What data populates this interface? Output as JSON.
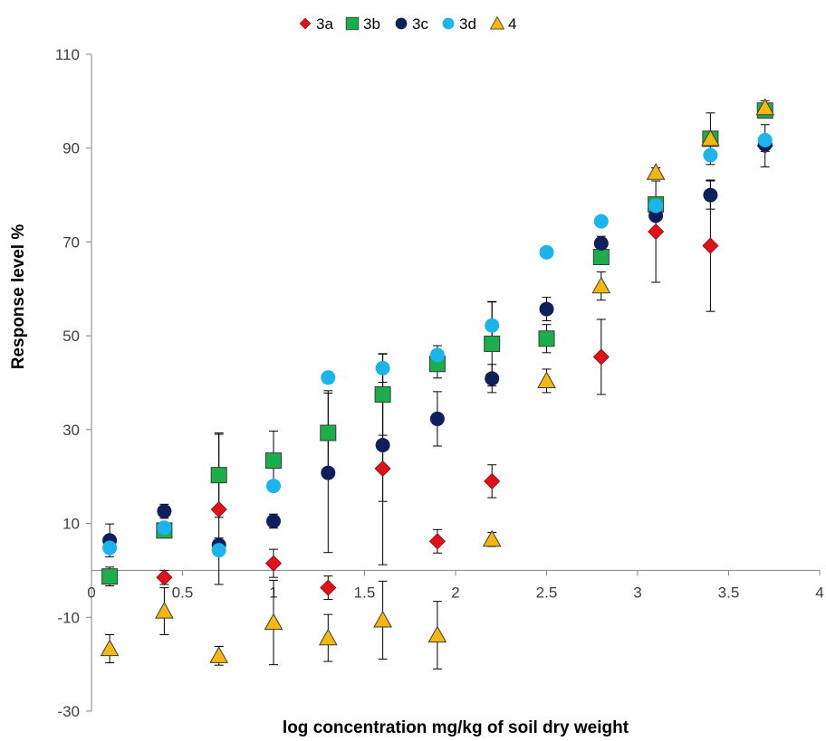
{
  "chart_data": {
    "type": "scatter",
    "title": "",
    "xlabel": "log concentration mg/kg of soil dry weight",
    "ylabel": "Response level %",
    "xlim": [
      0,
      4
    ],
    "ylim": [
      -30,
      110
    ],
    "x_ticks": [
      0,
      0.5,
      1,
      1.5,
      2,
      2.5,
      3,
      3.5,
      4
    ],
    "x_tick_labels": [
      "0",
      "0.5",
      "1",
      "1.5",
      "2",
      "2.5",
      "3",
      "3.5",
      "4"
    ],
    "y_ticks": [
      -30,
      -10,
      10,
      30,
      50,
      70,
      90,
      110
    ],
    "y_tick_labels": [
      "-30",
      "-10",
      "10",
      "30",
      "50",
      "70",
      "90",
      "110"
    ],
    "grid": false,
    "legend_position": "top-center",
    "error_bars": true,
    "series": [
      {
        "name": "3a",
        "marker": "diamond",
        "color": "#E0111B",
        "points": [
          {
            "x": 0.4,
            "y": -1.5,
            "err": 1.5
          },
          {
            "x": 0.7,
            "y": 13,
            "err": 16
          },
          {
            "x": 1.0,
            "y": 1.5,
            "err": 3
          },
          {
            "x": 1.3,
            "y": -3.7,
            "err": 2.5
          },
          {
            "x": 1.6,
            "y": 21.7,
            "err": 20.5
          },
          {
            "x": 1.9,
            "y": 6.2,
            "err": 2.5
          },
          {
            "x": 2.2,
            "y": 19,
            "err": 3.5
          },
          {
            "x": 2.8,
            "y": 45.5,
            "err": 8
          },
          {
            "x": 3.1,
            "y": 72.2,
            "err": 10.8
          },
          {
            "x": 3.4,
            "y": 69.2,
            "err": 14
          },
          {
            "x": 3.7,
            "y": 90.5,
            "err": 4.5
          }
        ]
      },
      {
        "name": "3b",
        "marker": "square",
        "color": "#1BAF4B",
        "points": [
          {
            "x": 0.1,
            "y": -1.3,
            "err": 2
          },
          {
            "x": 0.4,
            "y": 8.5,
            "err": 1.5
          },
          {
            "x": 0.7,
            "y": 20.3,
            "err": 9
          },
          {
            "x": 1.0,
            "y": 23.4,
            "err": 6.3
          },
          {
            "x": 1.3,
            "y": 29.3,
            "err": 9
          },
          {
            "x": 1.6,
            "y": 37.5,
            "err": 8.7
          },
          {
            "x": 1.9,
            "y": 44,
            "err": 3
          },
          {
            "x": 2.2,
            "y": 48.3,
            "err": 9
          },
          {
            "x": 2.5,
            "y": 49.4,
            "err": 3
          },
          {
            "x": 2.8,
            "y": 66.8,
            "err": 1
          },
          {
            "x": 3.1,
            "y": 78,
            "err": 1
          },
          {
            "x": 3.4,
            "y": 92,
            "err": 5.5
          },
          {
            "x": 3.7,
            "y": 98,
            "err": 1
          }
        ]
      },
      {
        "name": "3c",
        "marker": "circle",
        "color": "#0E1F5B",
        "points": [
          {
            "x": 0.1,
            "y": 6.4,
            "err": 3.5
          },
          {
            "x": 0.4,
            "y": 12.6,
            "err": 1.5
          },
          {
            "x": 0.7,
            "y": 5.4,
            "err": 1.5
          },
          {
            "x": 1.0,
            "y": 10.5,
            "err": 1.5
          },
          {
            "x": 1.3,
            "y": 20.8,
            "err": 17
          },
          {
            "x": 1.6,
            "y": 26.7,
            "err": 12
          },
          {
            "x": 1.9,
            "y": 32.3,
            "err": 5.8
          },
          {
            "x": 2.2,
            "y": 40.9,
            "err": 3
          },
          {
            "x": 2.5,
            "y": 55.7,
            "err": 2.5
          },
          {
            "x": 2.8,
            "y": 69.7,
            "err": 1.5
          },
          {
            "x": 3.1,
            "y": 75.6,
            "err": 4
          },
          {
            "x": 3.4,
            "y": 80,
            "err": 3
          },
          {
            "x": 3.7,
            "y": 90.8,
            "err": 1.5
          }
        ]
      },
      {
        "name": "3d",
        "marker": "circle",
        "color": "#1CB4EC",
        "points": [
          {
            "x": 0.1,
            "y": 4.8,
            "err": 1
          },
          {
            "x": 0.4,
            "y": 9.1,
            "err": 1
          },
          {
            "x": 0.7,
            "y": 4.3,
            "err": 1
          },
          {
            "x": 1.0,
            "y": 18,
            "err": 1
          },
          {
            "x": 1.3,
            "y": 41.1,
            "err": 1.2
          },
          {
            "x": 1.6,
            "y": 43.1,
            "err": 3
          },
          {
            "x": 1.9,
            "y": 45.9,
            "err": 2
          },
          {
            "x": 2.2,
            "y": 52.2,
            "err": 5
          },
          {
            "x": 2.5,
            "y": 67.8,
            "err": 1
          },
          {
            "x": 2.8,
            "y": 74.4,
            "err": 1
          },
          {
            "x": 3.1,
            "y": 77.7,
            "err": 1
          },
          {
            "x": 3.4,
            "y": 88.5,
            "err": 1
          },
          {
            "x": 3.7,
            "y": 91.7,
            "err": 1
          }
        ]
      },
      {
        "name": "4",
        "marker": "triangle",
        "color": "#F7B70F",
        "points": [
          {
            "x": 0.1,
            "y": -16.7,
            "err": 3
          },
          {
            "x": 0.4,
            "y": -8.7,
            "err": 5
          },
          {
            "x": 0.7,
            "y": -18.2,
            "err": 2
          },
          {
            "x": 1.0,
            "y": -11.1,
            "err": 9
          },
          {
            "x": 1.3,
            "y": -14.4,
            "err": 5
          },
          {
            "x": 1.6,
            "y": -10.6,
            "err": 8.3
          },
          {
            "x": 1.9,
            "y": -13.8,
            "err": 7.2
          },
          {
            "x": 2.2,
            "y": 6.6,
            "err": 1.5
          },
          {
            "x": 2.5,
            "y": 40.4,
            "err": 2.5
          },
          {
            "x": 2.8,
            "y": 60.6,
            "err": 3
          },
          {
            "x": 3.1,
            "y": 84.8,
            "err": 1
          },
          {
            "x": 3.4,
            "y": 92,
            "err": 1
          },
          {
            "x": 3.7,
            "y": 98.6,
            "err": 1.5
          }
        ]
      }
    ]
  }
}
